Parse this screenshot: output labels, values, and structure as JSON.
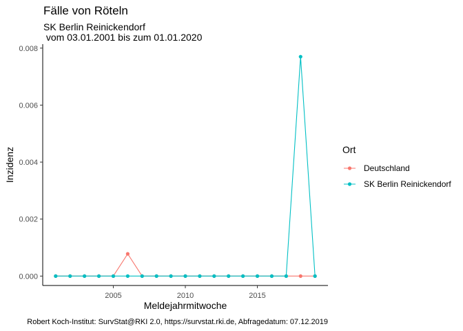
{
  "chart_data": {
    "type": "line",
    "title": "Fälle von Röteln",
    "subtitle_lines": [
      "SK Berlin Reinickendorf",
      " vom 03.01.2001 bis zum 01.01.2020"
    ],
    "xlabel": "Meldejahrmitwoche",
    "ylabel": "Inzidenz",
    "caption": "Robert Koch-Institut: SurvStat@RKI 2.0, https://survstat.rki.de, Abfragedatum: 07.12.2019",
    "xlim": [
      2000.1,
      2019.9
    ],
    "ylim": [
      -0.00033,
      0.00814
    ],
    "x_ticks": [
      2005,
      2010,
      2015
    ],
    "y_ticks": [
      0.0,
      0.002,
      0.004,
      0.006,
      0.008
    ],
    "y_tick_labels": [
      "0.000",
      "0.002",
      "0.004",
      "0.006",
      "0.008"
    ],
    "grid": false,
    "legend": {
      "title": "Ort",
      "position": "right"
    },
    "x": [
      2001,
      2002,
      2003,
      2004,
      2005,
      2006,
      2007,
      2008,
      2009,
      2010,
      2011,
      2012,
      2013,
      2014,
      2015,
      2016,
      2017,
      2018,
      2019
    ],
    "series": [
      {
        "name": "Deutschland",
        "color": "#F8766D",
        "values": [
          0,
          0,
          0,
          0,
          0,
          0.00078,
          0,
          0,
          0,
          0,
          0,
          0,
          0,
          0,
          0,
          0,
          0,
          0,
          0
        ]
      },
      {
        "name": "SK Berlin Reinickendorf",
        "color": "#00BFC4",
        "values": [
          0,
          0,
          0,
          0,
          0,
          0,
          0,
          0,
          0,
          0,
          0,
          0,
          0,
          0,
          0,
          0,
          0,
          0.0077,
          0
        ]
      }
    ]
  }
}
